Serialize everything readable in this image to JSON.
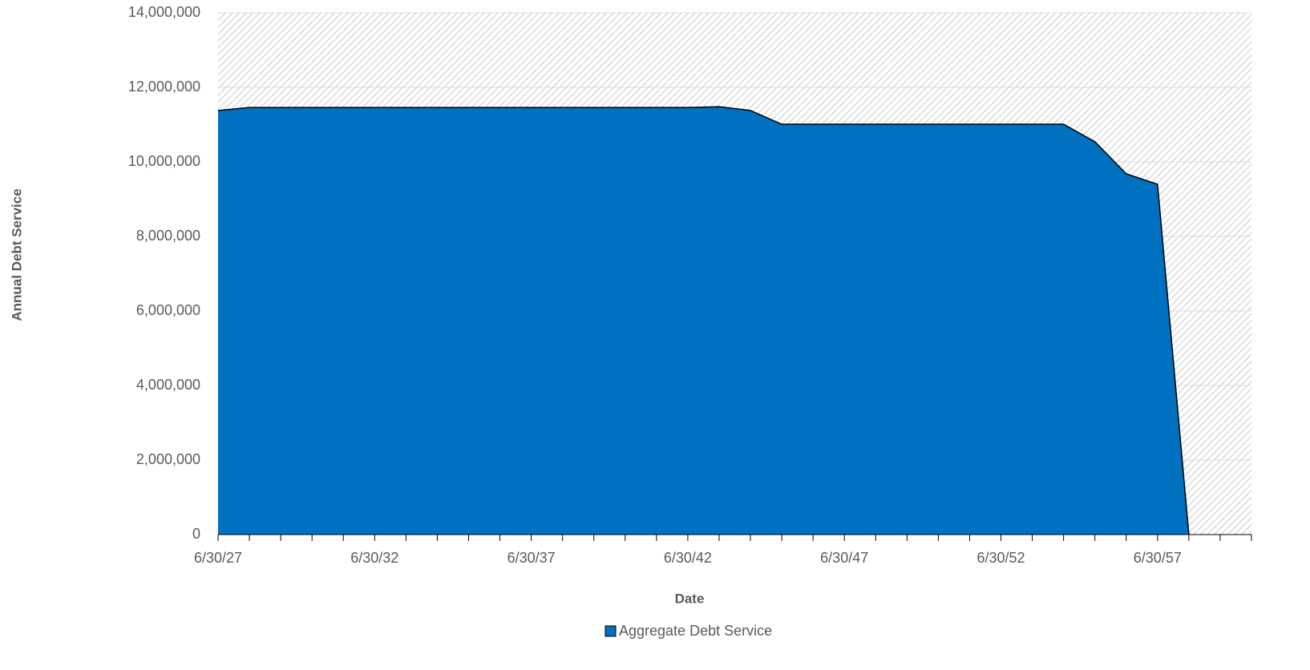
{
  "chart_data": {
    "type": "area",
    "x_label": "Date",
    "y_label": "Annual Debt Service",
    "categories": [
      "6/30/27",
      null,
      null,
      null,
      null,
      "6/30/32",
      null,
      null,
      null,
      null,
      "6/30/37",
      null,
      null,
      null,
      null,
      "6/30/42",
      null,
      null,
      null,
      null,
      "6/30/47",
      null,
      null,
      null,
      null,
      "6/30/52",
      null,
      null,
      null,
      null,
      "6/30/57",
      null,
      null,
      null
    ],
    "series": [
      {
        "name": "Aggregate Debt Service",
        "color": "#0070c0",
        "values": [
          11380000,
          11460000,
          11460000,
          11460000,
          11460000,
          11460000,
          11460000,
          11460000,
          11460000,
          11460000,
          11460000,
          11460000,
          11460000,
          11460000,
          11460000,
          11460000,
          11480000,
          11380000,
          11010000,
          11010000,
          11010000,
          11010000,
          11010000,
          11010000,
          11010000,
          11010000,
          11010000,
          11010000,
          10540000,
          9680000,
          9400000,
          0,
          null,
          null
        ]
      }
    ],
    "ylim": [
      0,
      14000000
    ],
    "yticks": [
      0,
      {
        "value": 2000000,
        "label": "2,000,000"
      },
      {
        "value": 4000000,
        "label": "4,000,000"
      },
      {
        "value": 6000000,
        "label": "6,000,000"
      },
      {
        "value": 8000000,
        "label": "8,000,000"
      },
      {
        "value": 10000000,
        "label": "10,000,000"
      },
      {
        "value": 12000000,
        "label": "12,000,000"
      },
      {
        "value": 14000000,
        "label": "14,000,000"
      }
    ],
    "grid": true,
    "legend": "bottom"
  }
}
